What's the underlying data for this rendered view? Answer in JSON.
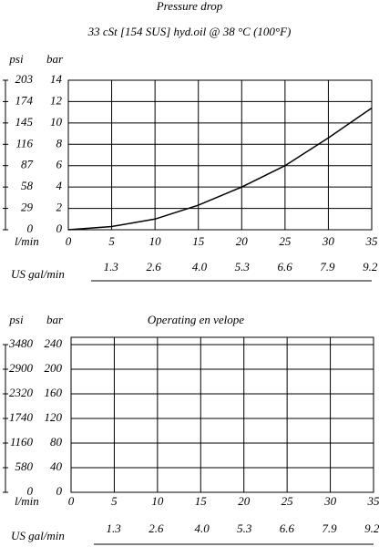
{
  "chart_data": [
    {
      "type": "line",
      "title": "Pressure drop",
      "subtitle": "33 cSt [154 SUS] hyd.oil @ 38   °C (100°F)",
      "y_label": "bar",
      "y2_label": "psi",
      "x_label": "l/min",
      "x2_label": "US gal/min",
      "x": [
        0,
        5,
        10,
        15,
        20,
        25,
        30,
        35
      ],
      "series": [
        {
          "values": [
            0,
            0.3,
            1.0,
            2.3,
            4.0,
            6.0,
            8.6,
            11.4
          ],
          "color": "#000000"
        }
      ],
      "xlim": [
        0,
        35
      ],
      "xticks": [
        0,
        5,
        10,
        15,
        20,
        25,
        30,
        35
      ],
      "x2lim": [
        0,
        9.25
      ],
      "x2ticks": [
        1.3,
        2.6,
        {
          "value": 4,
          "label": "4.0"
        },
        5.3,
        6.6,
        7.9,
        9.2
      ],
      "ylim": [
        0,
        14
      ],
      "yticks": [
        0,
        2,
        4,
        6,
        8,
        10,
        12,
        14
      ],
      "y2lim": [
        0,
        203
      ],
      "y2ticks": [
        0,
        29,
        58,
        87,
        116,
        145,
        174,
        203
      ],
      "grid": true
    },
    {
      "type": "line",
      "title": "Operating en velope",
      "y_label": "bar",
      "y2_label": "psi",
      "x_label": "l/min",
      "x2_label": "US gal/min",
      "series": [],
      "xlim": [
        0,
        35
      ],
      "xticks": [
        0,
        5,
        10,
        15,
        20,
        25,
        30,
        35
      ],
      "x2lim": [
        0,
        9.25
      ],
      "x2ticks": [
        1.3,
        2.6,
        {
          "value": 4,
          "label": "4.0"
        },
        5.3,
        6.6,
        7.9,
        9.2
      ],
      "ylim": [
        0,
        240
      ],
      "yticks": [
        0,
        40,
        80,
        120,
        160,
        200,
        240
      ],
      "y2lim": [
        0,
        3480
      ],
      "y2ticks": [
        0,
        580,
        1160,
        1740,
        2320,
        2900,
        3480
      ],
      "grid": true
    }
  ]
}
